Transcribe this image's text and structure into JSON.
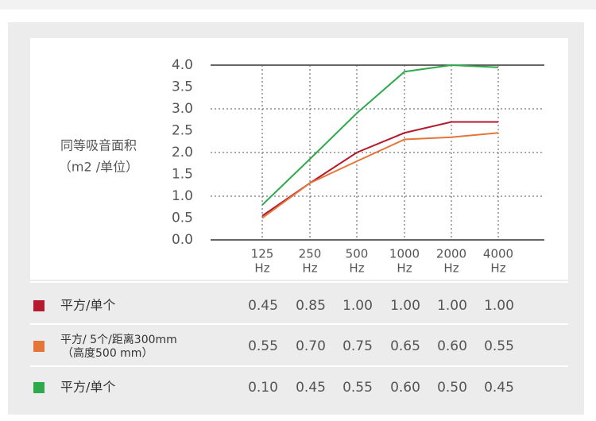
{
  "chart_data": {
    "type": "line",
    "y_label": [
      "同等吸音面积",
      "（m2 /单位）"
    ],
    "categories": [
      "125",
      "250",
      "500",
      "1000",
      "2000",
      "4000"
    ],
    "x_unit": "Hz",
    "ylim": [
      0,
      4
    ],
    "yticks": [
      {
        "value": 0,
        "label": "0.0"
      },
      {
        "value": 0.5,
        "label": "0.5"
      },
      {
        "value": 1,
        "label": "1.0"
      },
      {
        "value": 1.5,
        "label": "1.5"
      },
      {
        "value": 2,
        "label": "2.0"
      },
      {
        "value": 2.5,
        "label": "2.5"
      },
      {
        "value": 3,
        "label": "3.0"
      },
      {
        "value": 3.5,
        "label": "3.5"
      },
      {
        "value": 4,
        "label": "4.0"
      }
    ],
    "grid": true,
    "series": [
      {
        "name": "平方/单个",
        "color": "#b51a2e",
        "values": [
          0.55,
          1.3,
          2.0,
          2.45,
          2.7,
          2.7
        ]
      },
      {
        "name": "平方/ 5个/距离300mm",
        "name_line2": "（高度500 mm）",
        "color": "#e4763a",
        "values": [
          0.5,
          1.3,
          1.8,
          2.3,
          2.35,
          2.45
        ]
      },
      {
        "name": "平方/单个",
        "color": "#2eaa4c",
        "values": [
          0.8,
          1.85,
          2.9,
          3.85,
          4.0,
          3.95
        ]
      }
    ],
    "table": {
      "rows": [
        [
          "0.45",
          "0.85",
          "1.00",
          "1.00",
          "1.00",
          "1.00"
        ],
        [
          "0.55",
          "0.70",
          "0.75",
          "0.65",
          "0.60",
          "0.55"
        ],
        [
          "0.10",
          "0.45",
          "0.55",
          "0.60",
          "0.50",
          "0.45"
        ]
      ]
    }
  }
}
